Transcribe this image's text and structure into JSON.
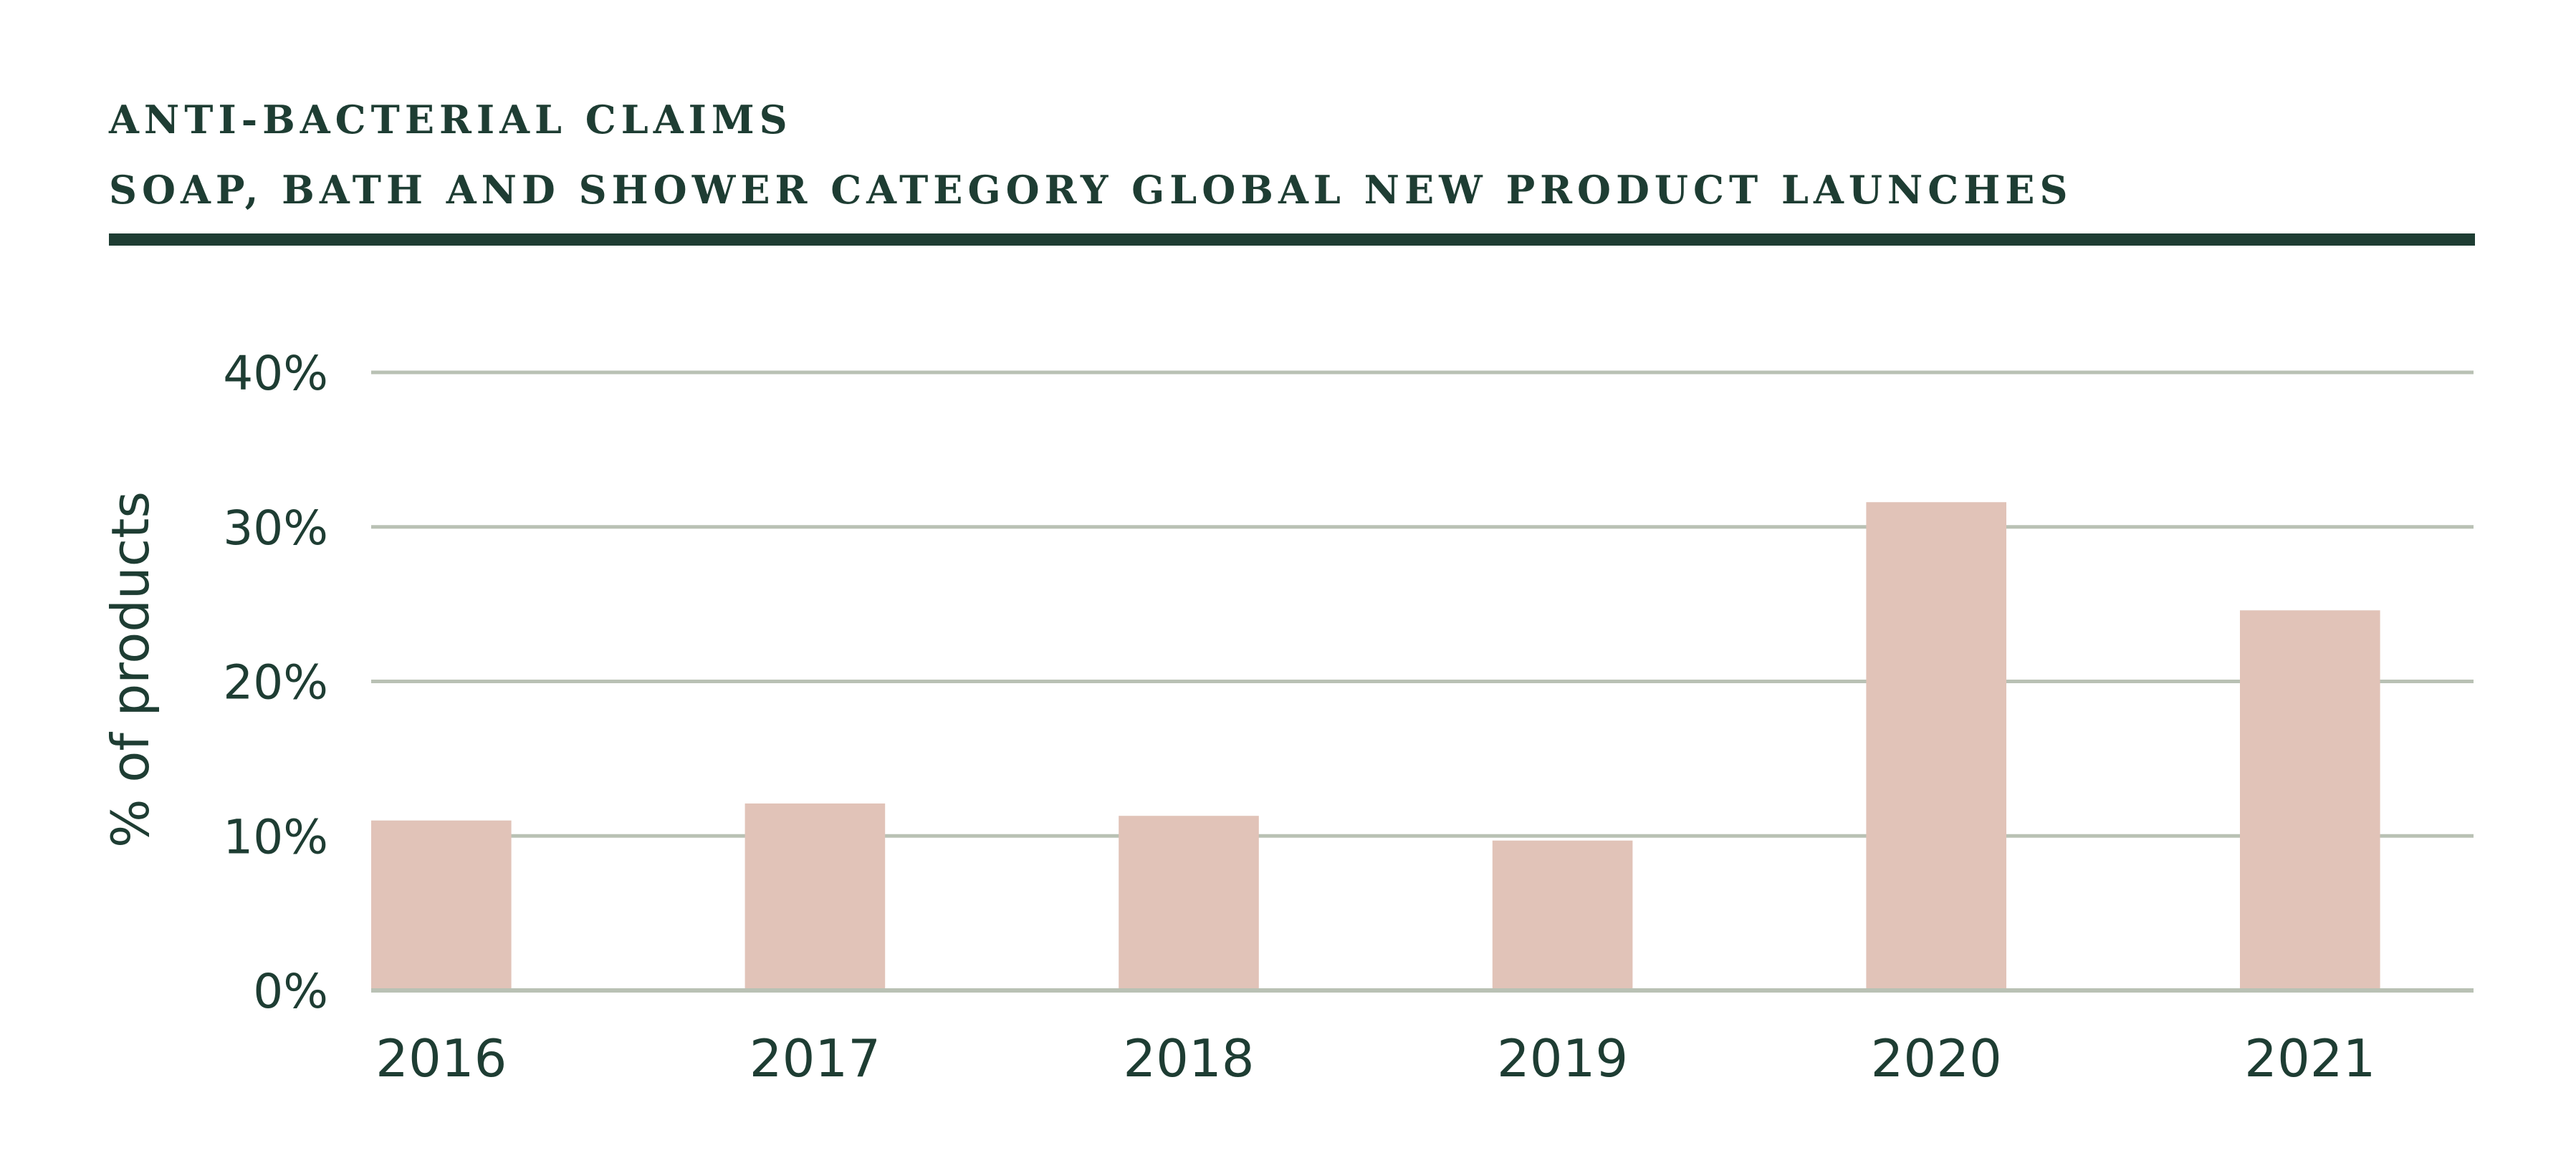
{
  "chart_data": {
    "type": "bar",
    "title": "ANTI-BACTERIAL CLAIMS",
    "subtitle": "SOAP, BATH AND SHOWER CATEGORY GLOBAL NEW PRODUCT LAUNCHES",
    "xlabel": "",
    "ylabel": "% of products",
    "categories": [
      "2016",
      "2017",
      "2018",
      "2019",
      "2020",
      "2021"
    ],
    "values": [
      11,
      12.1,
      11.3,
      9.7,
      31.6,
      24.6
    ],
    "ylim": [
      0,
      40
    ],
    "yticks": [
      0,
      10,
      20,
      30,
      40
    ],
    "ytick_labels": [
      "0%",
      "10%",
      "20%",
      "30%",
      "40%"
    ],
    "grid": true,
    "colors": {
      "bar": "#e1c3b8",
      "grid": "#b9c1b4",
      "text": "#1e3d33",
      "rule": "#1e3d33"
    }
  }
}
